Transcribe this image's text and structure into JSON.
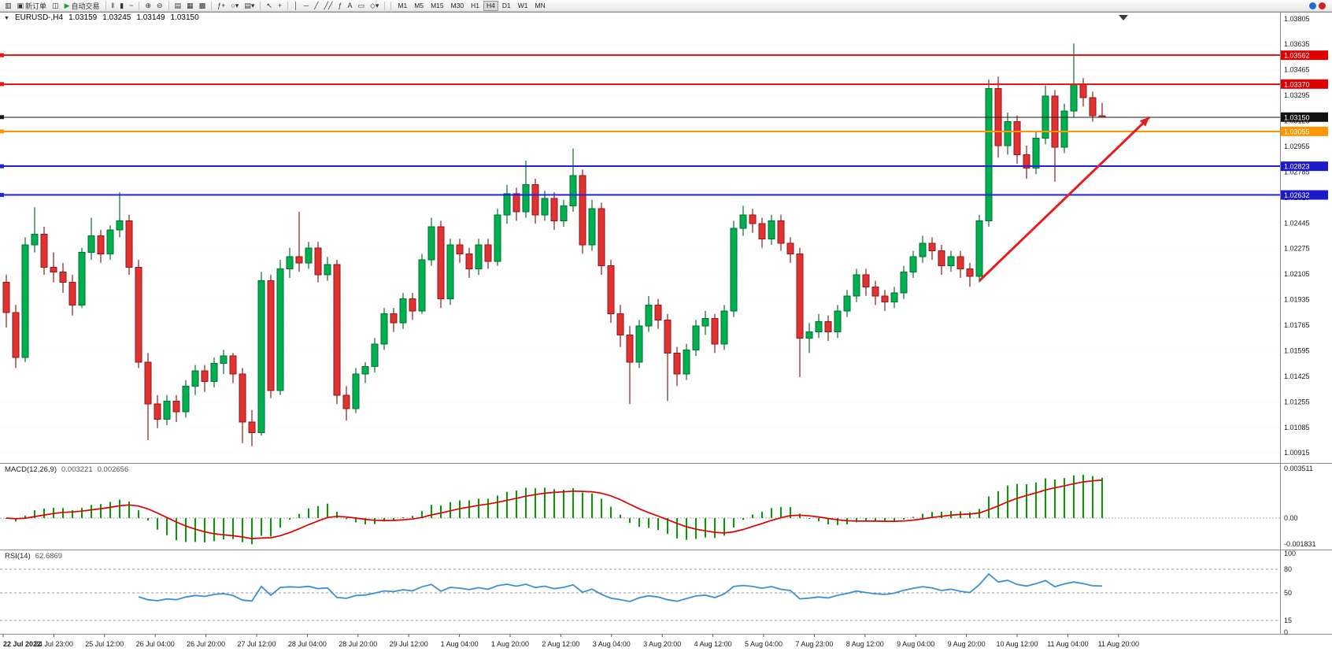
{
  "toolbar": {
    "items": [
      {
        "name": "chart-window-icon",
        "glyph": "▥"
      },
      {
        "name": "new-order-button",
        "glyph": "▣",
        "label": "新订单"
      },
      {
        "name": "chart-profiles-icon",
        "glyph": "◫"
      },
      {
        "name": "autotrading-button",
        "glyph": "▶",
        "label": "自动交易",
        "accent": "#1f9d3a"
      },
      {
        "sep": true
      },
      {
        "name": "bars-chart-icon",
        "glyph": "‖"
      },
      {
        "name": "candlestick-chart-icon",
        "glyph": "▮"
      },
      {
        "name": "line-chart-icon",
        "glyph": "~"
      },
      {
        "sep": true
      },
      {
        "name": "zoom-in-icon",
        "glyph": "⊕"
      },
      {
        "name": "zoom-out-icon",
        "glyph": "⊖"
      },
      {
        "sep": true
      },
      {
        "name": "new-chart-icon",
        "glyph": "▤"
      },
      {
        "name": "tile-windows-icon",
        "glyph": "▦"
      },
      {
        "name": "cascade-windows-icon",
        "glyph": "▩"
      },
      {
        "sep": true
      },
      {
        "name": "indicators-button",
        "glyph": "ƒ+"
      },
      {
        "name": "periods-dropdown",
        "glyph": "○▾"
      },
      {
        "name": "templates-dropdown",
        "glyph": "▤▾"
      },
      {
        "sep": true
      },
      {
        "name": "cursor-tool",
        "glyph": "↖"
      },
      {
        "name": "crosshair-tool",
        "glyph": "+"
      },
      {
        "sep": true
      },
      {
        "name": "vertical-line-tool",
        "glyph": "│"
      },
      {
        "name": "horizontal-line-tool",
        "glyph": "─"
      },
      {
        "name": "trendline-tool",
        "glyph": "╱"
      },
      {
        "name": "channel-tool",
        "glyph": "╱╱"
      },
      {
        "name": "fibonacci-tool",
        "glyph": "ƒ"
      },
      {
        "name": "text-tool",
        "glyph": "A"
      },
      {
        "name": "label-tool",
        "glyph": "▭"
      },
      {
        "name": "shapes-dropdown",
        "glyph": "◇▾"
      },
      {
        "sep": true
      }
    ],
    "timeframes": [
      {
        "label": "M1"
      },
      {
        "label": "M5"
      },
      {
        "label": "M15"
      },
      {
        "label": "M30"
      },
      {
        "label": "H1"
      },
      {
        "label": "H4",
        "active": true
      },
      {
        "label": "D1"
      },
      {
        "label": "W1"
      },
      {
        "label": "MN"
      }
    ],
    "right_icons": [
      {
        "name": "community-icon",
        "color": "#1f6fd0"
      },
      {
        "name": "connection-status-icon",
        "color": "#d02020"
      }
    ]
  },
  "chart": {
    "expander_glyph": "▼",
    "symbol_period": "EURUSD-,H4",
    "open": "1.03159",
    "high": "1.03245",
    "low": "1.03149",
    "close": "1.03150"
  },
  "price_axis": {
    "labels": [
      "1.03805",
      "1.03635",
      "1.03465",
      "1.03295",
      "1.03125",
      "1.02955",
      "1.02785",
      "1.02615",
      "1.02445",
      "1.02275",
      "1.02105",
      "1.01935",
      "1.01765",
      "1.01595",
      "1.01425",
      "1.01255",
      "1.01085",
      "1.00915"
    ]
  },
  "levels": [
    {
      "price": 1.03562,
      "label": "1.03562",
      "line": "#f01515",
      "badge_bg": "#e00000",
      "width": 2
    },
    {
      "price": 1.0337,
      "label": "1.03370",
      "line": "#f01515",
      "badge_bg": "#e00000",
      "width": 2
    },
    {
      "price": 1.0315,
      "label": "1.03150",
      "line": "#1a1a1a",
      "badge_bg": "#111111",
      "width": 1,
      "current": true
    },
    {
      "price": 1.03055,
      "label": "1.03055",
      "line": "#ff9800",
      "badge_bg": "#ff9800",
      "width": 2
    },
    {
      "price": 1.02823,
      "label": "1.02823",
      "line": "#2222dd",
      "badge_bg": "#1a1acc",
      "width": 2
    },
    {
      "price": 1.02632,
      "label": "1.02632",
      "line": "#2222dd",
      "badge_bg": "#1a1acc",
      "width": 2
    }
  ],
  "arrow": {
    "from_bar": 103,
    "from_price": 1.0206,
    "to_bar": 121,
    "to_price": 1.0315,
    "color": "#e81c1c"
  },
  "macd": {
    "label": "MACD(12,26,9)",
    "value_main": "0.003221",
    "value_signal": "0.002656",
    "axis": [
      "0.003511",
      "0.00",
      "-0.001831"
    ]
  },
  "rsi": {
    "label": "RSI(14)",
    "value": "62.6869",
    "axis": [
      "100",
      "80",
      "50",
      "15",
      "0"
    ],
    "level_lines": [
      80,
      50,
      15
    ]
  },
  "time_axis": {
    "labels": [
      "22 Jul 2022",
      "24 Jul 23:00",
      "25 Jul 12:00",
      "26 Jul 04:00",
      "26 Jul 20:00",
      "27 Jul 12:00",
      "28 Jul 04:00",
      "28 Jul 20:00",
      "29 Jul 12:00",
      "1 Aug 04:00",
      "1 Aug 20:00",
      "2 Aug 12:00",
      "3 Aug 04:00",
      "3 Aug 20:00",
      "4 Aug 12:00",
      "5 Aug 04:00",
      "7 Aug 23:00",
      "8 Aug 12:00",
      "9 Aug 04:00",
      "9 Aug 20:00",
      "10 Aug 12:00",
      "11 Aug 04:00",
      "11 Aug 20:00"
    ]
  },
  "colors": {
    "up": "#00b050",
    "up_border": "#00702f",
    "down": "#e03232",
    "down_border": "#971717",
    "wick_up": "#00702f",
    "wick_down": "#971717",
    "grid": "#ececec",
    "macd_hist": "#00a000",
    "macd_signal": "#e00000",
    "rsi_line": "#3c8fd4",
    "axis_text": "#1a1a1a",
    "separator": "#8c8c8c"
  },
  "chart_data": {
    "type": "candlestick",
    "symbol": "EURUSD-",
    "timeframe": "H4",
    "price_range": [
      1.0089,
      1.0383
    ],
    "indicators": {
      "macd": {
        "fast": 12,
        "slow": 26,
        "signal": 9
      },
      "rsi": {
        "period": 14
      }
    },
    "candles": [
      [
        1.0205,
        1.021,
        1.0175,
        1.0185
      ],
      [
        1.0185,
        1.019,
        1.0148,
        1.0155
      ],
      [
        1.0155,
        1.0235,
        1.0152,
        1.023
      ],
      [
        1.023,
        1.0255,
        1.0225,
        1.0237
      ],
      [
        1.0237,
        1.0242,
        1.021,
        1.0215
      ],
      [
        1.0215,
        1.0225,
        1.0205,
        1.0212
      ],
      [
        1.0212,
        1.0218,
        1.0198,
        1.0205
      ],
      [
        1.0205,
        1.021,
        1.0183,
        1.019
      ],
      [
        1.019,
        1.0228,
        1.0188,
        1.0225
      ],
      [
        1.0225,
        1.0248,
        1.022,
        1.0236
      ],
      [
        1.0236,
        1.024,
        1.0218,
        1.0224
      ],
      [
        1.0224,
        1.0243,
        1.022,
        1.024
      ],
      [
        1.024,
        1.0265,
        1.0235,
        1.0246
      ],
      [
        1.0246,
        1.025,
        1.021,
        1.0215
      ],
      [
        1.0215,
        1.022,
        1.0148,
        1.0152
      ],
      [
        1.0152,
        1.0158,
        1.01,
        1.0124
      ],
      [
        1.0124,
        1.013,
        1.0108,
        1.0114
      ],
      [
        1.0114,
        1.013,
        1.011,
        1.0126
      ],
      [
        1.0126,
        1.013,
        1.0112,
        1.0119
      ],
      [
        1.0119,
        1.014,
        1.0115,
        1.0136
      ],
      [
        1.0136,
        1.015,
        1.013,
        1.0146
      ],
      [
        1.0146,
        1.015,
        1.0132,
        1.0139
      ],
      [
        1.0139,
        1.0155,
        1.0135,
        1.0151
      ],
      [
        1.0151,
        1.016,
        1.0144,
        1.0156
      ],
      [
        1.0156,
        1.0158,
        1.0138,
        1.0144
      ],
      [
        1.0144,
        1.0148,
        1.0098,
        1.0112
      ],
      [
        1.0112,
        1.012,
        1.0096,
        1.0105
      ],
      [
        1.0105,
        1.0212,
        1.0103,
        1.0206
      ],
      [
        1.0206,
        1.021,
        1.0128,
        1.0133
      ],
      [
        1.0133,
        1.022,
        1.013,
        1.0214
      ],
      [
        1.0214,
        1.0228,
        1.0208,
        1.0222
      ],
      [
        1.0222,
        1.0252,
        1.0212,
        1.0218
      ],
      [
        1.0218,
        1.0232,
        1.0214,
        1.0228
      ],
      [
        1.0228,
        1.0232,
        1.0205,
        1.021
      ],
      [
        1.021,
        1.0222,
        1.0206,
        1.0217
      ],
      [
        1.0217,
        1.022,
        1.0124,
        1.013
      ],
      [
        1.013,
        1.0136,
        1.0113,
        1.0121
      ],
      [
        1.0121,
        1.0148,
        1.0118,
        1.0144
      ],
      [
        1.0144,
        1.0152,
        1.0138,
        1.0149
      ],
      [
        1.0149,
        1.0168,
        1.0145,
        1.0164
      ],
      [
        1.0164,
        1.0188,
        1.016,
        1.0184
      ],
      [
        1.0184,
        1.0188,
        1.0172,
        1.0178
      ],
      [
        1.0178,
        1.0198,
        1.0174,
        1.0194
      ],
      [
        1.0194,
        1.0198,
        1.018,
        1.0186
      ],
      [
        1.0186,
        1.0224,
        1.0184,
        1.022
      ],
      [
        1.022,
        1.0248,
        1.0216,
        1.0242
      ],
      [
        1.0242,
        1.0246,
        1.0188,
        1.0194
      ],
      [
        1.0194,
        1.0234,
        1.019,
        1.023
      ],
      [
        1.023,
        1.0234,
        1.0218,
        1.0224
      ],
      [
        1.0224,
        1.0228,
        1.0208,
        1.0214
      ],
      [
        1.0214,
        1.0234,
        1.021,
        1.023
      ],
      [
        1.023,
        1.0234,
        1.0214,
        1.0219
      ],
      [
        1.0219,
        1.0254,
        1.0216,
        1.025
      ],
      [
        1.025,
        1.027,
        1.0244,
        1.0264
      ],
      [
        1.0264,
        1.0268,
        1.0246,
        1.0252
      ],
      [
        1.0252,
        1.0286,
        1.0248,
        1.027
      ],
      [
        1.027,
        1.0274,
        1.0244,
        1.025
      ],
      [
        1.025,
        1.0266,
        1.0246,
        1.0261
      ],
      [
        1.0261,
        1.0265,
        1.024,
        1.0246
      ],
      [
        1.0246,
        1.026,
        1.0242,
        1.0256
      ],
      [
        1.0256,
        1.0294,
        1.0252,
        1.0276
      ],
      [
        1.0276,
        1.028,
        1.0224,
        1.023
      ],
      [
        1.023,
        1.026,
        1.0226,
        1.0254
      ],
      [
        1.0254,
        1.0258,
        1.021,
        1.0216
      ],
      [
        1.0216,
        1.022,
        1.0178,
        1.0184
      ],
      [
        1.0184,
        1.019,
        1.0162,
        1.017
      ],
      [
        1.017,
        1.0176,
        1.0124,
        1.0152
      ],
      [
        1.0152,
        1.018,
        1.0148,
        1.0176
      ],
      [
        1.0176,
        1.0196,
        1.0172,
        1.019
      ],
      [
        1.019,
        1.0194,
        1.0174,
        1.018
      ],
      [
        1.018,
        1.0184,
        1.0126,
        1.0158
      ],
      [
        1.0158,
        1.0162,
        1.0136,
        1.0144
      ],
      [
        1.0144,
        1.0164,
        1.014,
        1.016
      ],
      [
        1.016,
        1.018,
        1.0156,
        1.0176
      ],
      [
        1.0176,
        1.0186,
        1.017,
        1.0181
      ],
      [
        1.0181,
        1.0184,
        1.0158,
        1.0164
      ],
      [
        1.0164,
        1.019,
        1.016,
        1.0186
      ],
      [
        1.0186,
        1.0246,
        1.0182,
        1.0241
      ],
      [
        1.0241,
        1.0256,
        1.0236,
        1.025
      ],
      [
        1.025,
        1.0254,
        1.0238,
        1.0244
      ],
      [
        1.0244,
        1.0248,
        1.0228,
        1.0234
      ],
      [
        1.0234,
        1.025,
        1.023,
        1.0246
      ],
      [
        1.0246,
        1.025,
        1.0226,
        1.0231
      ],
      [
        1.0231,
        1.0235,
        1.0218,
        1.0224
      ],
      [
        1.0224,
        1.0228,
        1.0142,
        1.0168
      ],
      [
        1.0168,
        1.0178,
        1.0158,
        1.0172
      ],
      [
        1.0172,
        1.0184,
        1.0168,
        1.0179
      ],
      [
        1.0179,
        1.0183,
        1.0166,
        1.0172
      ],
      [
        1.0172,
        1.019,
        1.0168,
        1.0186
      ],
      [
        1.0186,
        1.02,
        1.0182,
        1.0196
      ],
      [
        1.0196,
        1.0214,
        1.0192,
        1.021
      ],
      [
        1.021,
        1.0214,
        1.0196,
        1.0202
      ],
      [
        1.0202,
        1.0206,
        1.019,
        1.0196
      ],
      [
        1.0196,
        1.02,
        1.0186,
        1.0192
      ],
      [
        1.0192,
        1.0202,
        1.0188,
        1.0198
      ],
      [
        1.0198,
        1.0216,
        1.0194,
        1.0212
      ],
      [
        1.0212,
        1.0226,
        1.0208,
        1.0222
      ],
      [
        1.0222,
        1.0236,
        1.0218,
        1.0231
      ],
      [
        1.0231,
        1.0235,
        1.022,
        1.0226
      ],
      [
        1.0226,
        1.023,
        1.021,
        1.0216
      ],
      [
        1.0216,
        1.0226,
        1.0212,
        1.0222
      ],
      [
        1.0222,
        1.0226,
        1.0208,
        1.0214
      ],
      [
        1.0214,
        1.0218,
        1.0202,
        1.0209
      ],
      [
        1.0209,
        1.025,
        1.0205,
        1.0246
      ],
      [
        1.0246,
        1.034,
        1.0242,
        1.0334
      ],
      [
        1.0334,
        1.0342,
        1.0288,
        1.0296
      ],
      [
        1.0296,
        1.0318,
        1.029,
        1.0312
      ],
      [
        1.0312,
        1.0316,
        1.0284,
        1.029
      ],
      [
        1.029,
        1.0296,
        1.0274,
        1.0281
      ],
      [
        1.0281,
        1.0306,
        1.0277,
        1.0301
      ],
      [
        1.0301,
        1.0336,
        1.0297,
        1.0329
      ],
      [
        1.0329,
        1.0333,
        1.0272,
        1.0295
      ],
      [
        1.0295,
        1.0324,
        1.0291,
        1.0319
      ],
      [
        1.0319,
        1.0364,
        1.0315,
        1.0337
      ],
      [
        1.0337,
        1.0341,
        1.0322,
        1.0328
      ],
      [
        1.0328,
        1.0332,
        1.0312,
        1.0316
      ],
      [
        1.03159,
        1.03245,
        1.03149,
        1.0315
      ]
    ]
  }
}
